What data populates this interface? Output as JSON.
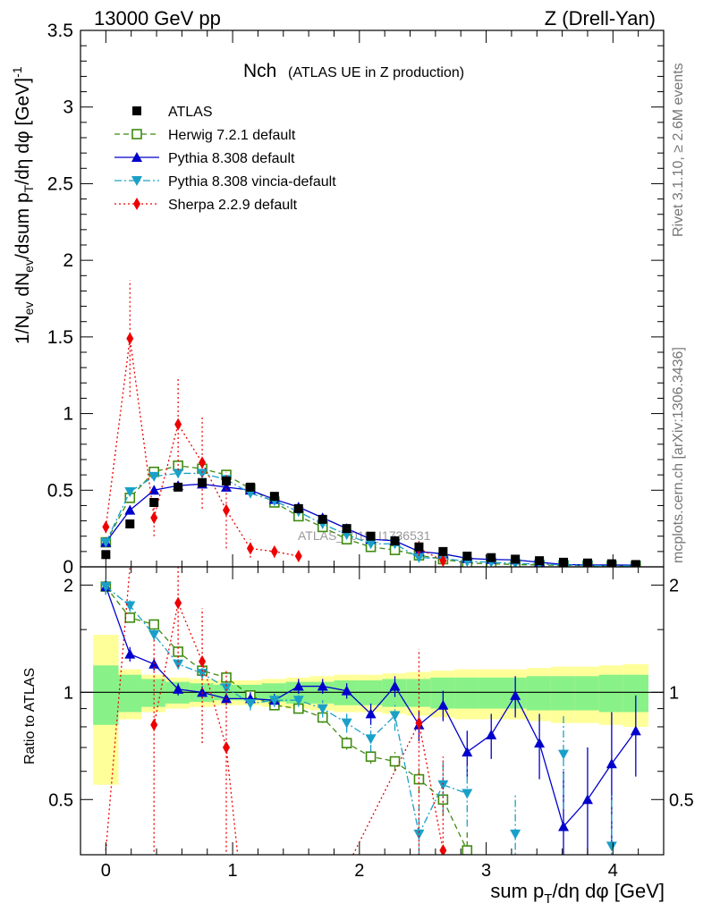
{
  "header": {
    "energy_label": "13000 GeV pp",
    "process_label": "Z (Drell-Yan)",
    "side_rivet": "Rivet 3.1.10, ≥ 2.6M events",
    "side_mcplots": "mcplots.cern.ch [arXiv:1306.3436]"
  },
  "colors": {
    "atlas": "#000000",
    "herwig": "#3f8a0f",
    "pythia": "#0000cc",
    "vincia": "#1aa0c8",
    "sherpa": "#ee0000",
    "band_inner": "#88f288",
    "band_outer": "#ffff99"
  },
  "chart_data": [
    {
      "type": "scatter",
      "title_main": "Nch",
      "title_sub": "(ATLAS UE in Z production)",
      "ylabel": "1/N_ev dN_ev/dsum p_T/dη dφ [GeV]^-1",
      "watermark": "ATLAS_2019_I1736531",
      "xlim": [
        -0.2,
        4.4
      ],
      "ylim": [
        0,
        3.5
      ],
      "yticks": [
        0,
        0.5,
        1,
        1.5,
        2,
        2.5,
        3,
        3.5
      ],
      "ytick_labels": [
        "0",
        "0.5",
        "1",
        "1.5",
        "2",
        "2.5",
        "3",
        "3.5"
      ],
      "x": [
        0.0,
        0.19,
        0.38,
        0.57,
        0.76,
        0.95,
        1.14,
        1.33,
        1.52,
        1.71,
        1.9,
        2.09,
        2.28,
        2.47,
        2.66,
        2.85,
        3.04,
        3.23,
        3.42,
        3.61,
        3.8,
        3.99,
        4.18
      ],
      "series": [
        {
          "name": "ATLAS",
          "key": "atlas",
          "marker": "square",
          "values": [
            0.08,
            0.28,
            0.42,
            0.52,
            0.55,
            0.56,
            0.52,
            0.46,
            0.38,
            0.31,
            0.25,
            0.2,
            0.17,
            0.13,
            0.1,
            0.07,
            0.06,
            0.05,
            0.04,
            0.03,
            0.025,
            0.02,
            0.015
          ]
        },
        {
          "name": "Herwig 7.2.1 default",
          "key": "herwig",
          "marker": "open-square",
          "dash": "6,4",
          "values": [
            0.16,
            0.45,
            0.62,
            0.66,
            0.64,
            0.6,
            0.51,
            0.42,
            0.33,
            0.26,
            0.18,
            0.13,
            0.11,
            0.075,
            0.05,
            0.025,
            0.02,
            0.015,
            0.012,
            0.01,
            0.008,
            0.006,
            0.005
          ]
        },
        {
          "name": "Pythia 8.308 default",
          "key": "pythia",
          "marker": "triangle-up",
          "values": [
            0.16,
            0.37,
            0.5,
            0.53,
            0.54,
            0.52,
            0.5,
            0.44,
            0.39,
            0.32,
            0.25,
            0.18,
            0.17,
            0.1,
            0.085,
            0.055,
            0.048,
            0.045,
            0.03,
            0.015,
            0.012,
            0.012,
            0.011
          ]
        },
        {
          "name": "Pythia 8.308 vincia-default",
          "key": "vincia",
          "marker": "triangle-down",
          "dash": "8,3,2,3",
          "values": [
            0.16,
            0.49,
            0.59,
            0.61,
            0.61,
            0.57,
            0.48,
            0.43,
            0.36,
            0.28,
            0.21,
            0.15,
            0.15,
            0.06,
            0.055,
            0.035,
            0.03,
            0.022,
            0.018,
            0.013,
            0.009,
            0.007,
            0.006
          ]
        },
        {
          "name": "Sherpa 2.2.9 default",
          "key": "sherpa",
          "marker": "diamond",
          "dash": "2,3",
          "values": [
            0.26,
            1.49,
            0.32,
            0.93,
            0.68,
            0.37,
            0.12,
            0.1,
            0.07,
            null,
            null,
            null,
            null,
            0.12,
            0.04,
            null,
            null,
            null,
            null,
            null,
            null,
            null,
            null
          ],
          "err": [
            0.04,
            0.38,
            0.12,
            0.3,
            0.3,
            0.25,
            0.06,
            0.04,
            0.02,
            null,
            null,
            null,
            null,
            0.05,
            0.02,
            null,
            null,
            null,
            null,
            null,
            null,
            null,
            null
          ]
        }
      ]
    },
    {
      "type": "scatter",
      "ylabel": "Ratio to ATLAS",
      "xlabel": "sum p_T/dη dφ [GeV]",
      "xlim": [
        -0.2,
        4.4
      ],
      "ylim": [
        0.35,
        2.25
      ],
      "xticks": [
        0,
        1,
        2,
        3,
        4
      ],
      "xtick_labels": [
        "0",
        "1",
        "2",
        "3",
        "4"
      ],
      "yticks": [
        0.5,
        1,
        2
      ],
      "ytick_labels": [
        "0.5",
        "1",
        "2"
      ],
      "reference_line": 1,
      "x": [
        0.0,
        0.19,
        0.38,
        0.57,
        0.76,
        0.95,
        1.14,
        1.33,
        1.52,
        1.71,
        1.9,
        2.09,
        2.28,
        2.47,
        2.66,
        2.85,
        3.04,
        3.23,
        3.42,
        3.61,
        3.8,
        3.99,
        4.18
      ],
      "band_edges": [
        -0.1,
        0.1,
        0.28,
        0.47,
        0.66,
        0.85,
        1.04,
        1.23,
        1.42,
        1.61,
        1.8,
        1.99,
        2.18,
        2.37,
        2.56,
        2.75,
        2.94,
        3.13,
        3.32,
        3.51,
        3.7,
        3.89,
        4.08,
        4.28
      ],
      "band_inner": [
        0.19,
        0.12,
        0.09,
        0.07,
        0.06,
        0.05,
        0.05,
        0.06,
        0.07,
        0.07,
        0.08,
        0.08,
        0.09,
        0.09,
        0.1,
        0.1,
        0.1,
        0.1,
        0.11,
        0.11,
        0.11,
        0.12,
        0.12
      ],
      "band_outer": [
        0.45,
        0.16,
        0.12,
        0.1,
        0.09,
        0.08,
        0.08,
        0.09,
        0.1,
        0.11,
        0.12,
        0.12,
        0.13,
        0.14,
        0.15,
        0.16,
        0.16,
        0.16,
        0.17,
        0.18,
        0.18,
        0.19,
        0.2
      ],
      "series": [
        {
          "name": "Herwig 7.2.1 default",
          "key": "herwig",
          "marker": "open-square",
          "dash": "6,4",
          "values": [
            1.98,
            1.62,
            1.55,
            1.3,
            1.15,
            1.1,
            0.98,
            0.92,
            0.9,
            0.85,
            0.72,
            0.66,
            0.64,
            0.57,
            0.5,
            0.36,
            null,
            null,
            null,
            null,
            null,
            null,
            null
          ],
          "err": [
            0.08,
            0.05,
            0.04,
            0.03,
            0.03,
            0.03,
            0.02,
            0.02,
            0.02,
            0.03,
            0.03,
            0.03,
            0.04,
            0.05,
            0.05,
            0.05,
            null,
            null,
            null,
            null,
            null,
            null,
            null
          ]
        },
        {
          "name": "Pythia 8.308 default",
          "key": "pythia",
          "marker": "triangle-up",
          "values": [
            1.98,
            1.28,
            1.2,
            1.02,
            1.0,
            0.96,
            0.96,
            0.95,
            1.04,
            1.04,
            1.01,
            0.87,
            1.04,
            0.81,
            0.92,
            0.68,
            0.76,
            0.98,
            0.72,
            0.42,
            0.5,
            0.63,
            0.78
          ],
          "err": [
            0.1,
            0.06,
            0.05,
            0.04,
            0.04,
            0.04,
            0.04,
            0.04,
            0.05,
            0.05,
            0.05,
            0.06,
            0.07,
            0.08,
            0.09,
            0.1,
            0.11,
            0.13,
            0.15,
            0.18,
            0.2,
            0.25,
            0.2
          ]
        },
        {
          "name": "Pythia 8.308 vincia-default",
          "key": "vincia",
          "marker": "triangle-down",
          "dash": "8,3,2,3",
          "values": [
            1.98,
            1.75,
            1.45,
            1.2,
            1.13,
            1.03,
            0.93,
            0.95,
            0.95,
            0.9,
            0.82,
            0.74,
            0.86,
            0.4,
            0.55,
            0.52,
            null,
            0.4,
            null,
            0.67,
            null,
            0.37,
            null
          ],
          "err": [
            0.1,
            0.07,
            0.05,
            0.04,
            0.04,
            0.04,
            0.04,
            0.04,
            0.04,
            0.05,
            0.05,
            0.06,
            0.08,
            0.08,
            0.09,
            0.1,
            null,
            0.12,
            null,
            0.2,
            null,
            0.15,
            null
          ]
        },
        {
          "name": "Sherpa 2.2.9 default",
          "key": "sherpa",
          "marker": "diamond",
          "dash": "2,3",
          "values": [
            null,
            null,
            0.81,
            1.78,
            1.22,
            0.7,
            null,
            null,
            null,
            null,
            null,
            null,
            null,
            0.82,
            0.36,
            null,
            null,
            null,
            null,
            null,
            null,
            null,
            null
          ],
          "err": [
            null,
            null,
            0.6,
            0.6,
            0.5,
            0.45,
            null,
            null,
            null,
            null,
            null,
            null,
            null,
            0.5,
            0.3,
            null,
            null,
            null,
            null,
            null,
            null,
            null,
            null
          ],
          "spikes": [
            {
              "x_from": 0.0,
              "y_from": 0.36,
              "x_to": 0.19,
              "y_to": 2.25
            },
            {
              "x_from": 0.95,
              "y_from": 0.7,
              "x_to": 1.04,
              "y_to": 0.35
            },
            {
              "x_from": 1.95,
              "y_from": 0.35,
              "x_to": 2.47,
              "y_to": 0.82
            }
          ]
        }
      ]
    }
  ]
}
